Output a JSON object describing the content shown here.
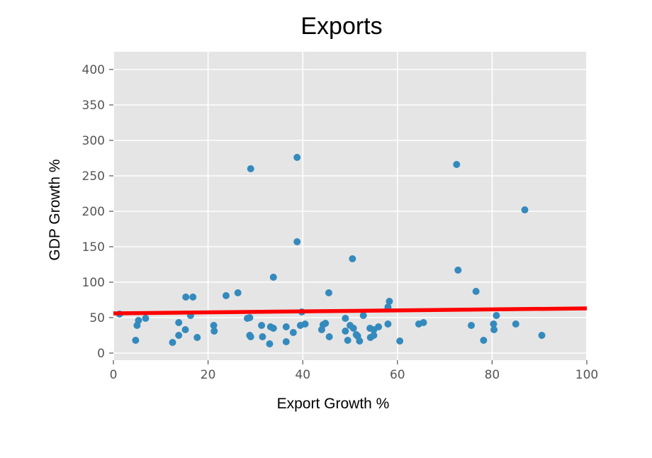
{
  "chart_data": {
    "type": "scatter",
    "title": "Exports",
    "xlabel": "Export Growth %",
    "ylabel": "GDP Growth %",
    "xlim": [
      0,
      100
    ],
    "ylim": [
      -10,
      425
    ],
    "xticks": [
      0,
      20,
      40,
      60,
      80,
      100
    ],
    "yticks": [
      0,
      50,
      100,
      150,
      200,
      250,
      300,
      350,
      400
    ],
    "grid": true,
    "colors": {
      "points": "#348abd",
      "trendline": "#ff0000",
      "background": "#e5e5e5",
      "grid": "#ffffff"
    },
    "points": [
      [
        1.3,
        55
      ],
      [
        4.7,
        18
      ],
      [
        5.0,
        39
      ],
      [
        5.3,
        46
      ],
      [
        6.8,
        49
      ],
      [
        12.5,
        15
      ],
      [
        13.8,
        43
      ],
      [
        13.8,
        25
      ],
      [
        15.2,
        33
      ],
      [
        15.3,
        79
      ],
      [
        16.3,
        53
      ],
      [
        16.8,
        79
      ],
      [
        17.7,
        22
      ],
      [
        21.2,
        39
      ],
      [
        21.3,
        31
      ],
      [
        23.8,
        81
      ],
      [
        26.3,
        85
      ],
      [
        28.3,
        49
      ],
      [
        28.8,
        50
      ],
      [
        28.8,
        25
      ],
      [
        29.0,
        23
      ],
      [
        29.0,
        260
      ],
      [
        31.3,
        39
      ],
      [
        31.5,
        23
      ],
      [
        33.0,
        13
      ],
      [
        33.2,
        37
      ],
      [
        33.8,
        107
      ],
      [
        33.8,
        35
      ],
      [
        36.5,
        16
      ],
      [
        36.5,
        37
      ],
      [
        38.0,
        29
      ],
      [
        38.8,
        157
      ],
      [
        38.8,
        276
      ],
      [
        39.5,
        39
      ],
      [
        39.8,
        58
      ],
      [
        40.5,
        41
      ],
      [
        44.0,
        33
      ],
      [
        44.3,
        40
      ],
      [
        44.8,
        42
      ],
      [
        45.5,
        85
      ],
      [
        45.6,
        23
      ],
      [
        49.0,
        49
      ],
      [
        49.0,
        31
      ],
      [
        49.5,
        18
      ],
      [
        50.0,
        39
      ],
      [
        50.5,
        133
      ],
      [
        50.7,
        35
      ],
      [
        51.3,
        26
      ],
      [
        51.6,
        24
      ],
      [
        52.0,
        17
      ],
      [
        52.8,
        53
      ],
      [
        54.2,
        35
      ],
      [
        54.3,
        22
      ],
      [
        55.0,
        25
      ],
      [
        55.0,
        33
      ],
      [
        56.0,
        37
      ],
      [
        58.0,
        65
      ],
      [
        58.0,
        41
      ],
      [
        58.3,
        73
      ],
      [
        60.5,
        17
      ],
      [
        64.5,
        41
      ],
      [
        65.5,
        43
      ],
      [
        72.5,
        266
      ],
      [
        72.8,
        117
      ],
      [
        75.6,
        39
      ],
      [
        76.6,
        87
      ],
      [
        78.2,
        18
      ],
      [
        80.3,
        41
      ],
      [
        80.4,
        33
      ],
      [
        80.9,
        53
      ],
      [
        85.0,
        41
      ],
      [
        86.9,
        202
      ],
      [
        90.5,
        25
      ]
    ],
    "trendline": {
      "x": [
        0,
        100
      ],
      "y": [
        56,
        63
      ]
    }
  }
}
